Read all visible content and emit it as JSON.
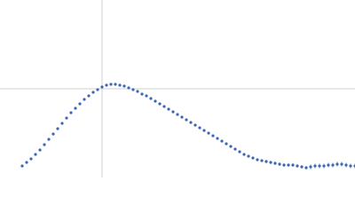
{
  "chart_data": {
    "type": "scatter",
    "color": "#3b67b5",
    "error_color": "#9fb3d9",
    "grid_color": "#d0d0d0",
    "xlim": [
      0,
      400
    ],
    "ylim": [
      0,
      200
    ],
    "grid_x": [
      115
    ],
    "grid_y": [
      100
    ],
    "series": [
      {
        "x": [
          25,
          30,
          35,
          40,
          45,
          50,
          55,
          60,
          65,
          70,
          75,
          80,
          85,
          90,
          95,
          100,
          105,
          110,
          115,
          120,
          125,
          130,
          135,
          140,
          145,
          150,
          155,
          160,
          165,
          170,
          175,
          180,
          185,
          190,
          195,
          200,
          205,
          210,
          215,
          220,
          225,
          230,
          235,
          240,
          245,
          250,
          255,
          260,
          265,
          270,
          275,
          280,
          285,
          290,
          295,
          300,
          305,
          310,
          315,
          320,
          325,
          330,
          335,
          340,
          345,
          350,
          355,
          360,
          365,
          370,
          375,
          380,
          385,
          390,
          395,
          400
        ],
        "values": [
          13,
          17,
          21,
          26,
          31,
          37,
          43,
          49,
          55,
          61,
          67,
          73,
          78,
          83,
          88,
          92,
          96,
          99,
          102,
          104,
          105,
          105,
          104,
          103,
          101,
          99,
          97,
          94,
          92,
          89,
          86,
          83,
          80,
          77,
          74,
          71,
          68,
          65,
          62,
          59,
          56,
          53,
          50,
          47,
          44,
          41,
          38,
          35,
          32,
          29,
          26,
          24,
          22,
          20,
          19,
          18,
          17,
          16,
          15,
          14,
          14,
          14,
          13,
          12,
          11,
          12,
          13,
          13,
          13,
          14,
          14,
          15,
          15,
          14,
          13,
          13
        ],
        "errors": [
          1,
          1,
          1,
          1,
          1,
          1,
          1,
          1,
          1,
          1,
          1,
          1,
          1,
          1,
          1,
          1,
          1,
          1,
          1,
          1,
          1,
          1,
          1,
          1,
          1,
          1,
          1,
          1,
          1,
          1,
          1,
          1,
          1,
          1,
          1,
          1,
          1,
          1,
          1,
          1,
          1,
          1,
          1,
          1,
          1,
          1,
          1,
          1,
          1,
          1,
          1,
          1,
          1,
          1,
          1,
          2,
          2,
          2,
          2,
          2,
          2,
          2,
          2,
          2,
          2,
          3,
          3,
          3,
          3,
          3,
          3,
          3,
          3,
          3,
          3,
          3
        ]
      }
    ]
  }
}
